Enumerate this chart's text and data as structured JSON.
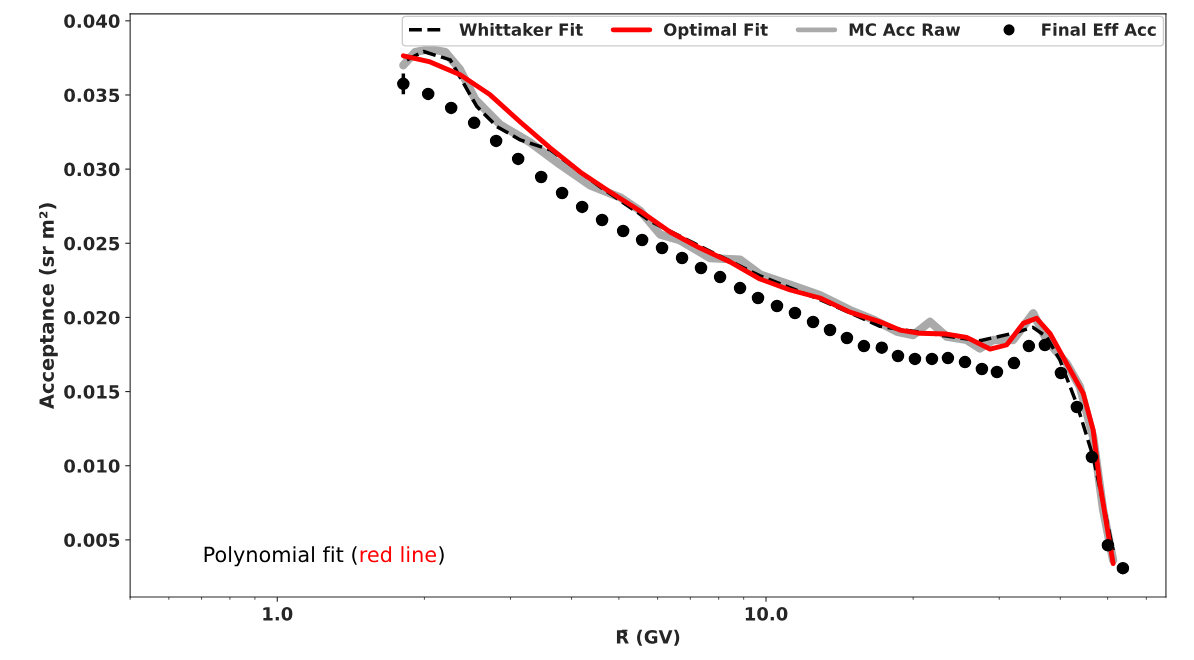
{
  "chart_data": {
    "type": "line",
    "xlabel": "R̄ (GV)",
    "ylabel": "Acceptance (sr m²)",
    "log": "x",
    "xlim": [
      0.5,
      65.8
    ],
    "ylim": [
      0.00115,
      0.04047
    ],
    "xticks": [
      {
        "value": 1,
        "label": "1.0"
      },
      {
        "value": 10,
        "label": "10.0"
      }
    ],
    "yticks": [
      {
        "value": 0.005,
        "label": "0.005"
      },
      {
        "value": 0.01,
        "label": "0.010"
      },
      {
        "value": 0.015,
        "label": "0.015"
      },
      {
        "value": 0.02,
        "label": "0.020"
      },
      {
        "value": 0.025,
        "label": "0.025"
      },
      {
        "value": 0.03,
        "label": "0.030"
      },
      {
        "value": 0.035,
        "label": "0.035"
      },
      {
        "value": 0.04,
        "label": "0.040"
      }
    ],
    "grid": false,
    "legend": "top right",
    "annotations": [
      "Polynomial fit (",
      "red line",
      ")"
    ],
    "series": [
      {
        "name": "MC Acc Raw",
        "color": "#aaaaaa",
        "line_style": "solid",
        "x": [
          1.811,
          1.915,
          2.055,
          2.206,
          2.367,
          2.541,
          2.858,
          3.291,
          3.791,
          4.366,
          5.028,
          5.524,
          6.069,
          6.671,
          7.684,
          8.849,
          9.721,
          11.2,
          12.9,
          14.85,
          16.71,
          18.51,
          20.01,
          21.65,
          23.42,
          25.73,
          27.39,
          29.17,
          32.04,
          35.21,
          37.5,
          41.2,
          43.86,
          46.7,
          48.96,
          51.31
        ],
        "values": [
          0.037,
          0.0379,
          0.0381,
          0.0379,
          0.0367,
          0.0347,
          0.033,
          0.0318,
          0.0303,
          0.0289,
          0.0281,
          0.0272,
          0.0256,
          0.0252,
          0.024,
          0.0239,
          0.0229,
          0.0222,
          0.0215,
          0.0205,
          0.0198,
          0.01904,
          0.01881,
          0.01971,
          0.0187,
          0.01848,
          0.01791,
          0.01848,
          0.01848,
          0.02028,
          0.01848,
          0.0169,
          0.01533,
          0.01195,
          0.007,
          0.00363
        ]
      },
      {
        "name": "Whittaker Fit",
        "color": "#000000",
        "line_style": "dashed",
        "x": [
          1.842,
          1.992,
          2.259,
          2.404,
          2.561,
          2.814,
          3.141,
          3.617,
          4.576,
          5.791,
          7.328,
          9.721,
          12.9,
          17.11,
          23.42,
          27.39,
          32.0,
          35.16,
          37.5,
          39.92,
          43.19,
          46.7,
          51.31
        ],
        "values": [
          0.03737,
          0.03793,
          0.03737,
          0.0358,
          0.03422,
          0.03287,
          0.03197,
          0.0313,
          0.0288,
          0.0265,
          0.0248,
          0.0228,
          0.0212,
          0.0194,
          0.01874,
          0.01843,
          0.01893,
          0.01933,
          0.0187,
          0.01713,
          0.0142,
          0.0106,
          0.0043
        ]
      },
      {
        "name": "Optimal Fit",
        "color": "#ff0000",
        "line_style": "solid",
        "x": [
          1.811,
          2.055,
          2.367,
          2.726,
          3.141,
          3.617,
          4.165,
          4.797,
          5.524,
          6.364,
          7.328,
          8.441,
          9.721,
          11.2,
          12.9,
          14.85,
          17.11,
          18.79,
          20.65,
          23.42,
          25.73,
          28.72,
          31.06,
          33.59,
          35.77,
          38.09,
          41.2,
          44.56,
          46.7,
          48.19,
          51.31
        ],
        "values": [
          0.03764,
          0.03723,
          0.03636,
          0.03501,
          0.03318,
          0.03143,
          0.02981,
          0.02846,
          0.02718,
          0.02576,
          0.02468,
          0.02374,
          0.02259,
          0.02185,
          0.02131,
          0.02036,
          0.01971,
          0.01915,
          0.01893,
          0.01888,
          0.01866,
          0.01787,
          0.01814,
          0.0196,
          0.01994,
          0.01893,
          0.0169,
          0.01488,
          0.0124,
          0.00881,
          0.0034
        ]
      },
      {
        "name": "Final Eff Acc",
        "type": "scatter",
        "color": "#000000",
        "marker": "circle",
        "x": [
          1.811,
          2.036,
          2.269,
          2.528,
          2.804,
          3.111,
          3.467,
          3.826,
          4.205,
          4.619,
          5.101,
          5.578,
          6.127,
          6.733,
          7.362,
          8.054,
          8.849,
          9.63,
          10.53,
          11.46,
          12.48,
          13.52,
          14.64,
          15.86,
          17.25,
          18.62,
          20.17,
          21.85,
          23.56,
          25.53,
          27.65,
          29.68,
          32.16,
          34.5,
          37.2,
          40.12,
          43.25,
          46.42,
          50.06,
          53.72
        ],
        "values": [
          0.03575,
          0.03507,
          0.03413,
          0.03312,
          0.0319,
          0.03069,
          0.02947,
          0.02839,
          0.02745,
          0.02657,
          0.02583,
          0.02522,
          0.02468,
          0.02401,
          0.02333,
          0.02272,
          0.02198,
          0.02131,
          0.02077,
          0.0203,
          0.01969,
          0.01915,
          0.01861,
          0.01807,
          0.01796,
          0.0174,
          0.0172,
          0.0172,
          0.01726,
          0.01699,
          0.01652,
          0.01632,
          0.01692,
          0.01807,
          0.01814,
          0.01625,
          0.01396,
          0.01058,
          0.00464,
          0.00309
        ],
        "errors": [
          0.0007,
          0.0004,
          0.0002,
          null,
          null,
          null,
          null,
          null,
          null,
          null,
          null,
          null,
          null,
          null,
          null,
          null,
          null,
          null,
          null,
          null,
          null,
          null,
          null,
          null,
          null,
          null,
          null,
          null,
          null,
          null,
          null,
          null,
          null,
          null,
          null,
          null,
          null,
          null,
          null,
          null
        ]
      }
    ]
  }
}
